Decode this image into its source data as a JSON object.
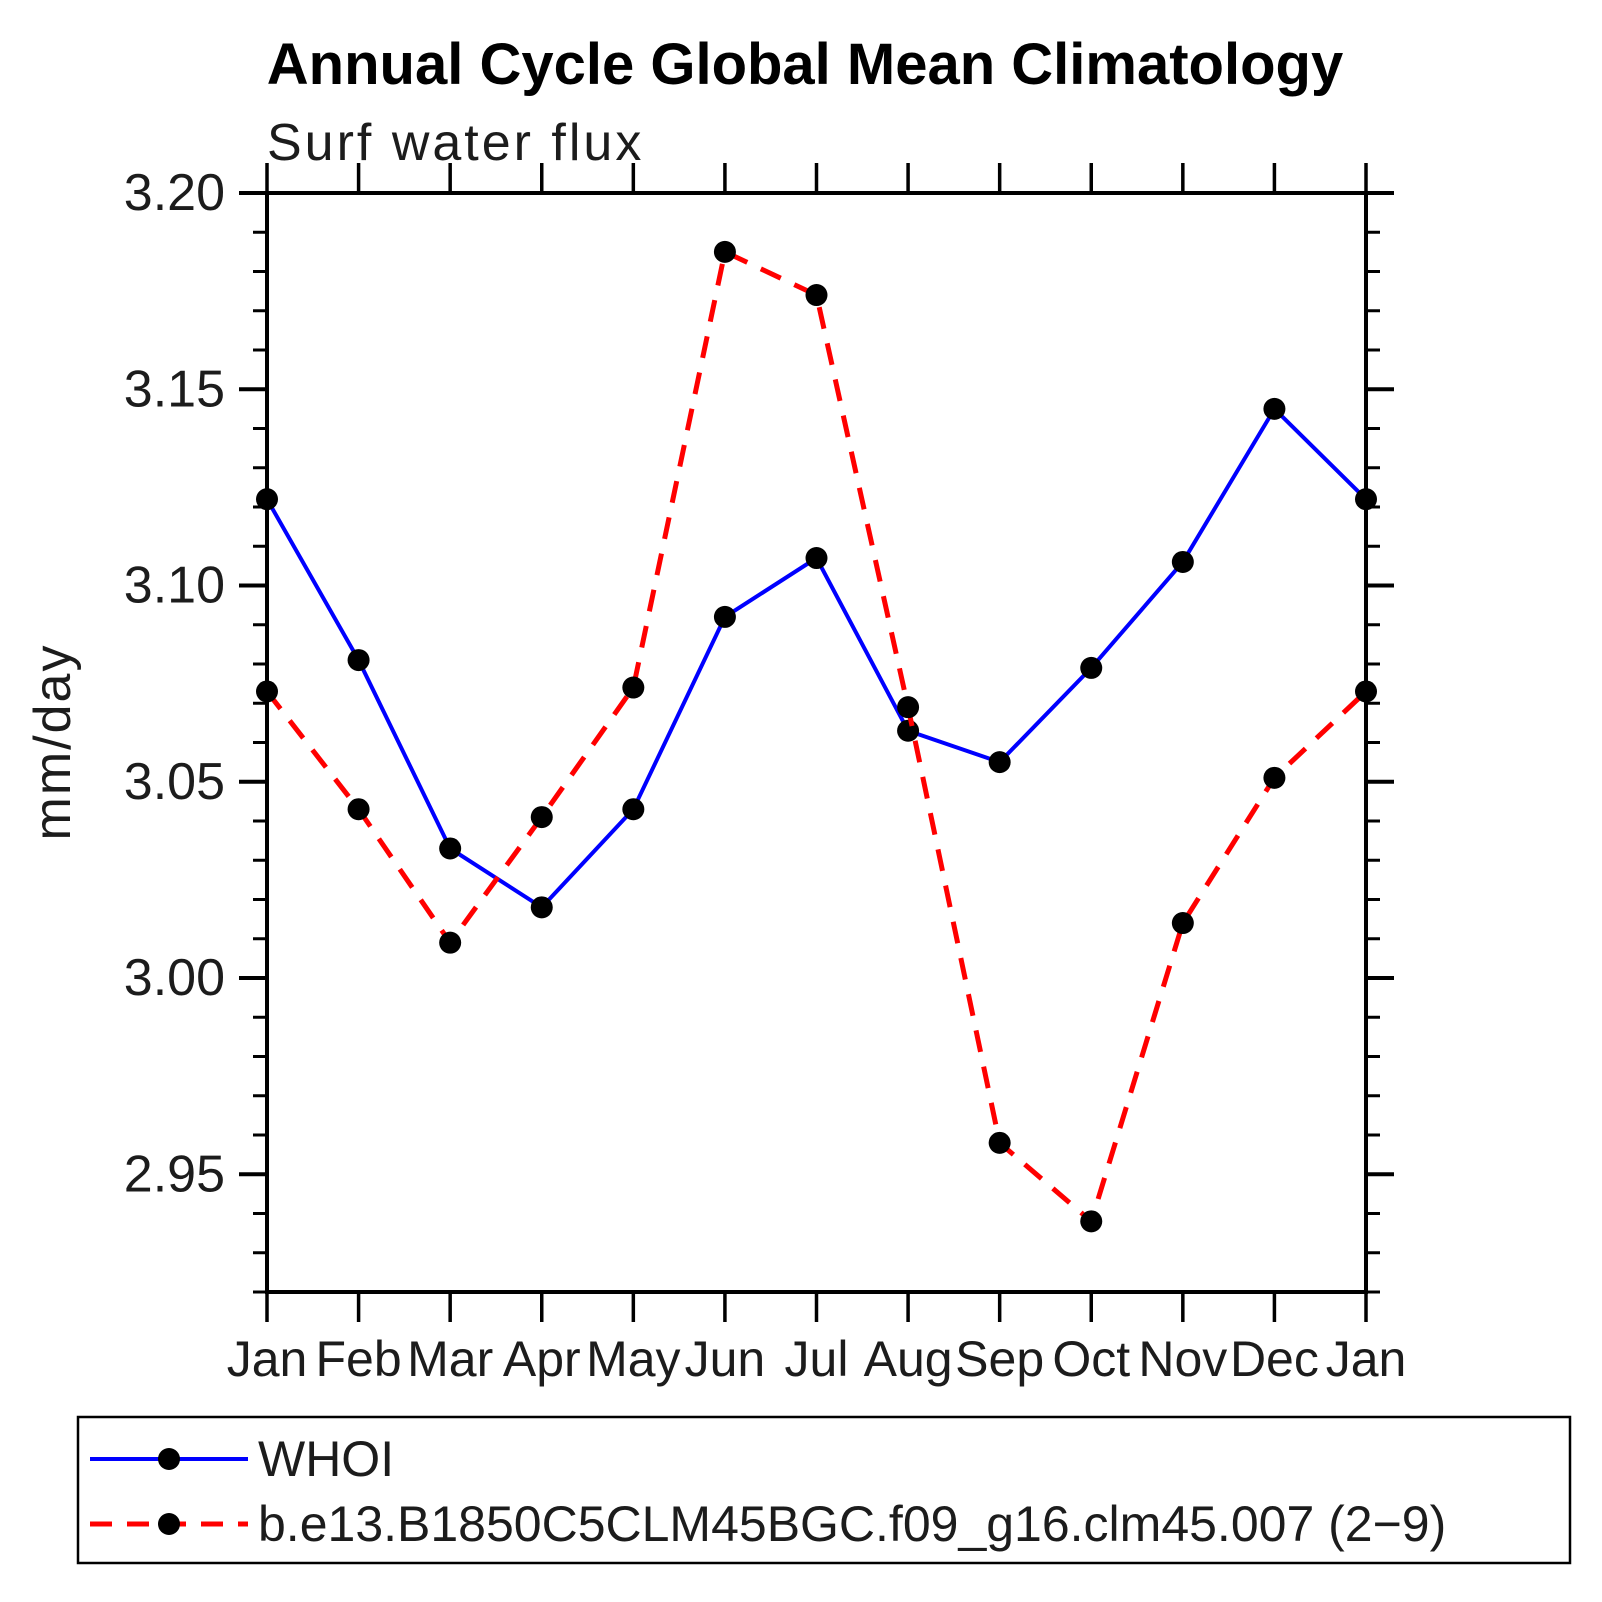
{
  "chart_data": {
    "type": "line",
    "title": "Annual Cycle Global Mean Climatology",
    "subtitle": "Surf water flux",
    "xlabel": "",
    "ylabel": "mm/day",
    "categories": [
      "Jan",
      "Feb",
      "Mar",
      "Apr",
      "May",
      "Jun",
      "Jul",
      "Aug",
      "Sep",
      "Oct",
      "Nov",
      "Dec",
      "Jan"
    ],
    "ylim": [
      2.92,
      3.2
    ],
    "y_major_ticks": [
      2.95,
      3.0,
      3.05,
      3.1,
      3.15,
      3.2
    ],
    "y_minor_step": 0.01,
    "grid": false,
    "legend_position": "bottom",
    "colors": {
      "axis": "#000000",
      "marker": "#000000",
      "background": "#ffffff"
    },
    "series": [
      {
        "name": "WHOI",
        "color": "#0000ff",
        "style": "solid",
        "marker": "circle",
        "values": [
          3.122,
          3.081,
          3.033,
          3.018,
          3.043,
          3.092,
          3.107,
          3.063,
          3.055,
          3.079,
          3.106,
          3.145,
          3.122
        ]
      },
      {
        "name": "b.e13.B1850C5CLM45BGC.f09_g16.clm45.007 (2−9)",
        "color": "#ff0000",
        "style": "dashed",
        "marker": "circle",
        "values": [
          3.073,
          3.043,
          3.009,
          3.041,
          3.074,
          3.185,
          3.174,
          3.069,
          2.958,
          2.938,
          3.014,
          3.051,
          3.073
        ]
      }
    ]
  }
}
